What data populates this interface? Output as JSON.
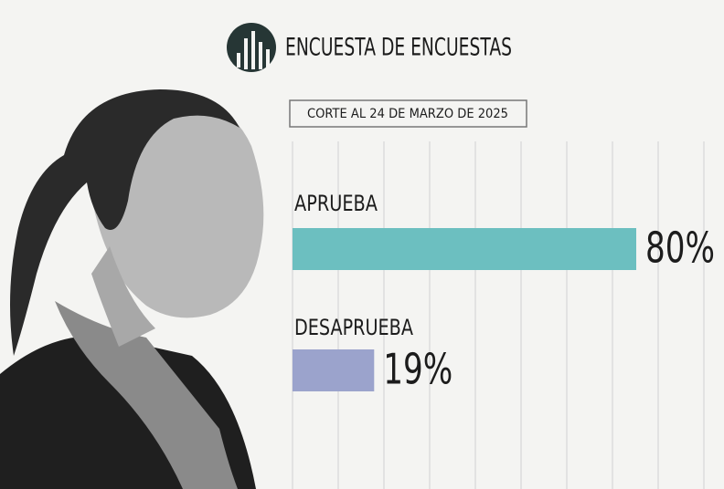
{
  "chart_data": {
    "type": "bar",
    "orientation": "horizontal",
    "title": "ENCUESTA DE ENCUESTAS",
    "subtitle": "CORTE AL 24 DE MARZO DE 2025",
    "categories": [
      "APRUEBA",
      "DESAPRUEBA"
    ],
    "values": [
      80,
      19
    ],
    "value_labels": [
      "80%",
      "19%"
    ],
    "colors": [
      "#6cbfc0",
      "#9ba3cc"
    ],
    "xlim": [
      0,
      100
    ]
  }
}
